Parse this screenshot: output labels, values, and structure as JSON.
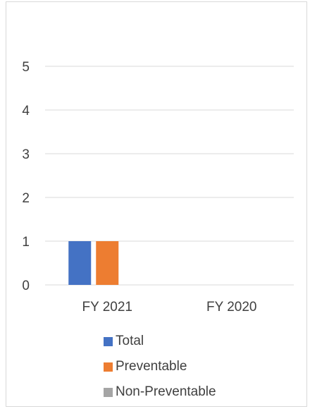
{
  "chart_data": {
    "type": "bar",
    "categories": [
      "FY 2021",
      "FY 2020"
    ],
    "series": [
      {
        "name": "Total",
        "values": [
          1,
          0
        ],
        "color": "#4472C4"
      },
      {
        "name": "Preventable",
        "values": [
          1,
          0
        ],
        "color": "#ED7D31"
      },
      {
        "name": "Non-Preventable",
        "values": [
          0,
          0
        ],
        "color": "#A5A5A5"
      }
    ],
    "yticks": [
      0,
      1,
      2,
      3,
      4,
      5
    ],
    "ylim": [
      0,
      5
    ],
    "grid": true,
    "legend_position": "bottom",
    "title": "",
    "xlabel": "",
    "ylabel": ""
  }
}
